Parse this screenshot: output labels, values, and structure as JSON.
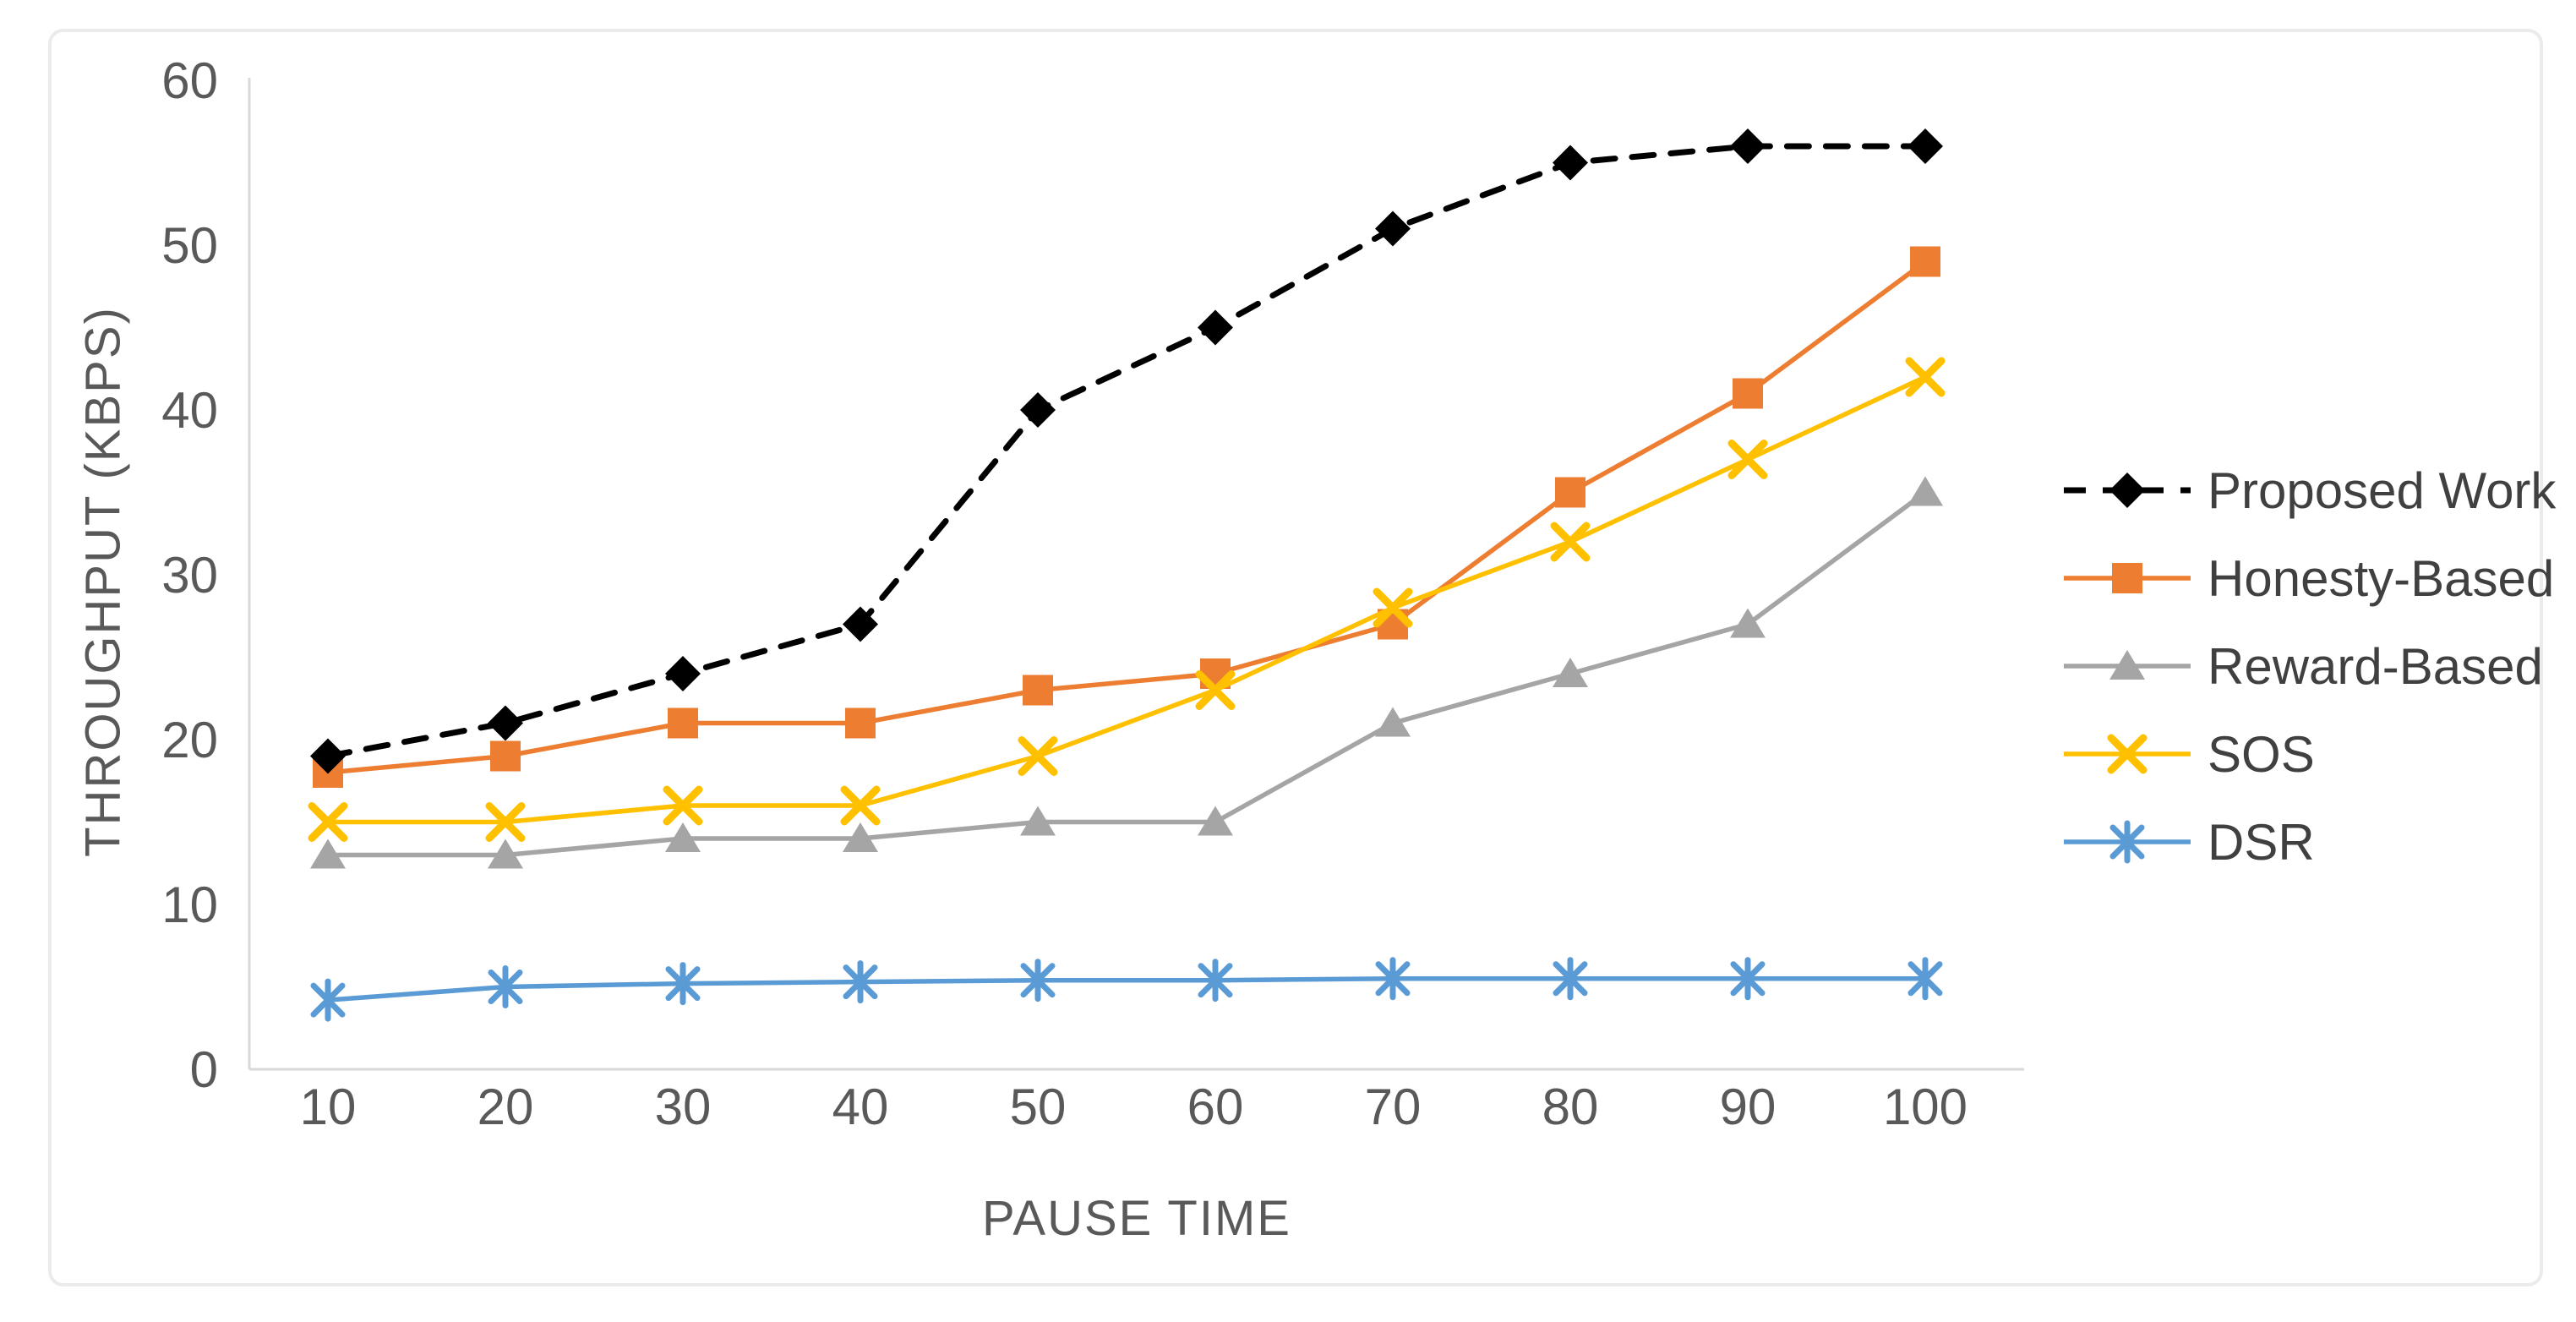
{
  "figure": {
    "background_color": "#FFFFFF",
    "frame_border_color": "#EBEBEB"
  },
  "chart_data": {
    "type": "line",
    "title": "",
    "xlabel": "PAUSE TIME",
    "ylabel": "THROUGHPUT (KBPS)",
    "x": [
      10,
      20,
      30,
      40,
      50,
      60,
      70,
      80,
      90,
      100
    ],
    "x_tick_labels": [
      "10",
      "20",
      "30",
      "40",
      "50",
      "60",
      "70",
      "80",
      "90",
      "100"
    ],
    "y_tick_labels": [
      "0",
      "10",
      "20",
      "30",
      "40",
      "50",
      "60"
    ],
    "y_ticks": [
      0,
      10,
      20,
      30,
      40,
      50,
      60
    ],
    "xlim": [
      10,
      100
    ],
    "ylim": [
      0,
      60
    ],
    "grid": false,
    "legend_position": "right",
    "axis_line_color": "#D9D9D9",
    "tick_label_color": "#595959",
    "axis_title_color": "#595959",
    "legend_text_color": "#404040",
    "series": [
      {
        "name": "Proposed Work",
        "color": "#000000",
        "marker": "diamond",
        "line_style": "dashed",
        "values": [
          19,
          21,
          24,
          27,
          40,
          45,
          51,
          55,
          56,
          56
        ]
      },
      {
        "name": "Honesty-Based",
        "color": "#ED7D31",
        "marker": "square",
        "line_style": "solid",
        "values": [
          18,
          19,
          21,
          21,
          23,
          24,
          27,
          35,
          41,
          49
        ]
      },
      {
        "name": "Reward-Based",
        "color": "#A5A5A5",
        "marker": "triangle",
        "line_style": "solid",
        "values": [
          13,
          13,
          14,
          14,
          15,
          15,
          21,
          24,
          27,
          35
        ]
      },
      {
        "name": "SOS",
        "color": "#FFC000",
        "marker": "x",
        "line_style": "solid",
        "values": [
          15,
          15,
          16,
          16,
          19,
          23,
          28,
          32,
          37,
          42
        ]
      },
      {
        "name": "DSR",
        "color": "#5B9BD5",
        "marker": "asterisk",
        "line_style": "solid",
        "values": [
          4.2,
          5,
          5.2,
          5.3,
          5.4,
          5.4,
          5.5,
          5.5,
          5.5,
          5.5
        ]
      }
    ]
  }
}
